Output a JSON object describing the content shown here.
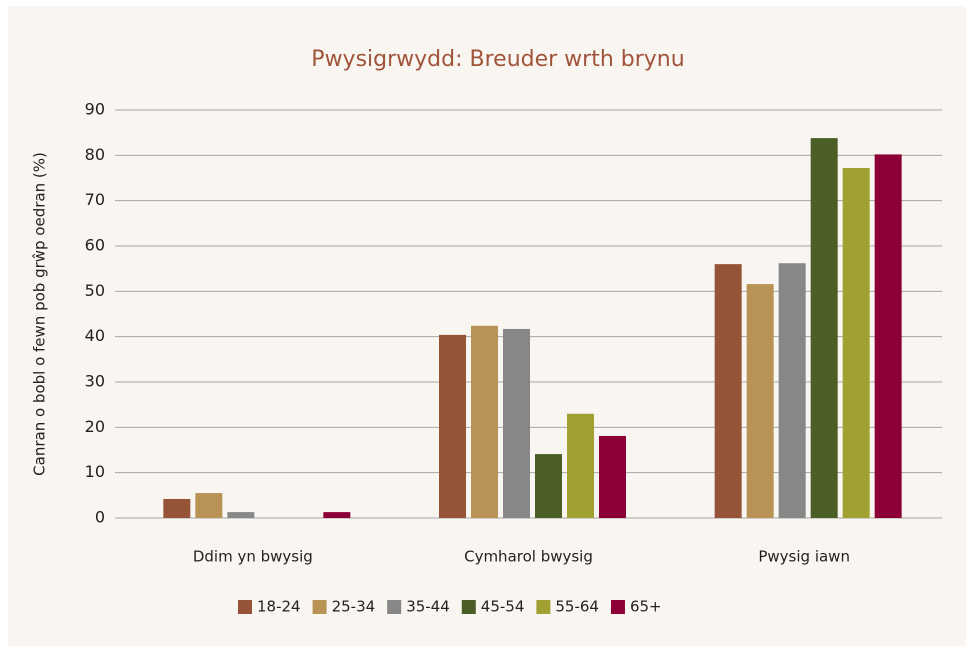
{
  "chart_data": {
    "type": "bar",
    "title": "Pwysigrwydd: Breuder wrth brynu",
    "y_label": "Canran o bobl o fewn pob grŵp oedran (%)",
    "categories": [
      "Ddim yn bwysig",
      "Cymharol bwysig",
      "Pwysig iawn"
    ],
    "series": [
      {
        "name": "18-24",
        "color": "#955437",
        "values": [
          4.2,
          40.4,
          56.0
        ]
      },
      {
        "name": "25-34",
        "color": "#b99356",
        "values": [
          5.5,
          42.4,
          51.6
        ]
      },
      {
        "name": "35-44",
        "color": "#878787",
        "values": [
          1.3,
          41.7,
          56.2
        ]
      },
      {
        "name": "45-54",
        "color": "#4a5e26",
        "values": [
          0,
          14.1,
          83.8
        ]
      },
      {
        "name": "55-64",
        "color": "#a0a130",
        "values": [
          0,
          23.0,
          77.2
        ]
      },
      {
        "name": "65+",
        "color": "#8d0037",
        "values": [
          1.3,
          18.1,
          80.2
        ]
      }
    ],
    "ylim": [
      0,
      90
    ],
    "yticks": [
      0,
      10,
      20,
      30,
      40,
      50,
      60,
      70,
      80,
      90
    ],
    "grid": true,
    "legend": "bottom"
  }
}
